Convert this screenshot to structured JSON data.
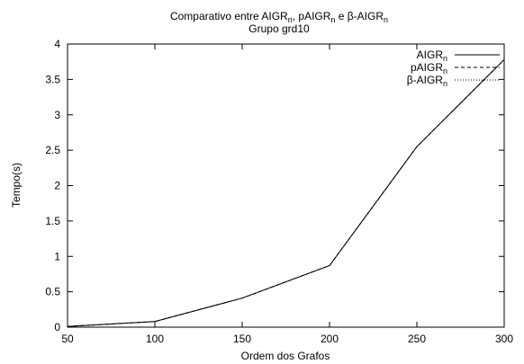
{
  "chart_data": {
    "type": "line",
    "title": {
      "line1": {
        "prefix": "Comparativo entre ",
        "s1": "AIGR",
        "sub1": "n",
        "sep1": ", ",
        "s2": "pAIGR",
        "sub2": "n",
        "sep2": " e ",
        "s3": "β-AIGR",
        "sub3": "n"
      },
      "line2": "Grupo grd10"
    },
    "xlabel": "Ordem dos Grafos",
    "ylabel": "Tempo(s)",
    "xlim": [
      50,
      300
    ],
    "ylim": [
      0,
      4
    ],
    "xticks": [
      50,
      100,
      150,
      200,
      250,
      300
    ],
    "yticks": [
      0,
      0.5,
      1,
      1.5,
      2,
      2.5,
      3,
      3.5,
      4
    ],
    "xtick_labels": [
      "50",
      "100",
      "150",
      "200",
      "250",
      "300"
    ],
    "ytick_labels": [
      "0",
      "0.5",
      "1",
      "1.5",
      "2",
      "2.5",
      "3",
      "3.5",
      "4"
    ],
    "grid": false,
    "legend_position": "top-right",
    "x": [
      50,
      100,
      150,
      200,
      250,
      300
    ],
    "series": [
      {
        "name_base": "AIGR",
        "name_sub": "n",
        "dash": "solid",
        "values": [
          0.01,
          0.08,
          0.41,
          0.87,
          2.55,
          3.78
        ]
      },
      {
        "name_base": "pAIGR",
        "name_sub": "n",
        "dash": "dashed",
        "values": [
          0.01,
          0.08,
          0.41,
          0.87,
          2.55,
          3.78
        ]
      },
      {
        "name_base": "β-AIGR",
        "name_sub": "n",
        "dash": "dotted",
        "values": [
          0.01,
          0.08,
          0.41,
          0.87,
          2.55,
          3.78
        ]
      }
    ]
  }
}
